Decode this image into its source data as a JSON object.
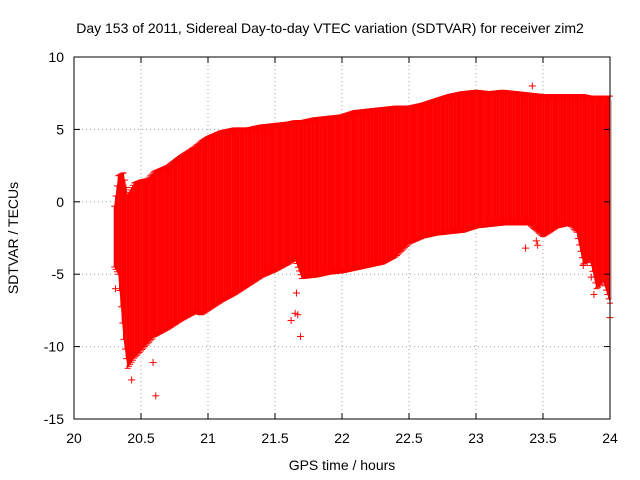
{
  "chart_data": {
    "type": "scatter",
    "title": "Day 153 of 2011, Sidereal Day-to-day VTEC variation (SDTVAR) for receiver zim2",
    "xlabel": "GPS time / hours",
    "ylabel": "SDTVAR / TECUs",
    "xlim": [
      20,
      24
    ],
    "ylim": [
      -15,
      10
    ],
    "x_ticks": [
      20,
      20.5,
      21,
      21.5,
      22,
      22.5,
      23,
      23.5,
      24
    ],
    "x_tick_labels": [
      "20",
      "20.5",
      "21",
      "21.5",
      "22",
      "22.5",
      "23",
      "23.5",
      "24"
    ],
    "y_ticks": [
      -15,
      -10,
      -5,
      0,
      5,
      10
    ],
    "y_tick_labels": [
      "-15",
      "-10",
      "-5",
      "0",
      "5",
      "10"
    ],
    "grid": true,
    "series": [
      {
        "name": "SDTVAR envelope",
        "color": "#ff0000",
        "marker": "+",
        "x": [
          20.3,
          20.33,
          20.37,
          20.4,
          20.45,
          20.5,
          20.55,
          20.6,
          20.7,
          20.8,
          20.9,
          20.95,
          21.0,
          21.1,
          21.2,
          21.3,
          21.4,
          21.5,
          21.6,
          21.65,
          21.7,
          21.8,
          21.9,
          22.0,
          22.1,
          22.2,
          22.3,
          22.4,
          22.5,
          22.6,
          22.7,
          22.8,
          22.9,
          23.0,
          23.1,
          23.2,
          23.3,
          23.4,
          23.5,
          23.6,
          23.7,
          23.75,
          23.8,
          23.85,
          23.9,
          23.95,
          24.0
        ],
        "upper": [
          -0.3,
          1.8,
          2.0,
          0.5,
          1.3,
          1.5,
          1.6,
          2.1,
          2.5,
          3.2,
          3.8,
          4.2,
          4.5,
          4.9,
          5.1,
          5.1,
          5.3,
          5.4,
          5.5,
          5.6,
          5.6,
          5.8,
          5.9,
          6.0,
          6.3,
          6.4,
          6.5,
          6.6,
          6.6,
          6.8,
          7.1,
          7.4,
          7.6,
          7.7,
          7.6,
          7.7,
          7.6,
          7.5,
          7.4,
          7.4,
          7.4,
          7.4,
          7.4,
          7.3,
          7.3,
          7.3,
          7.3
        ],
        "lower": [
          -4.5,
          -5.0,
          -9.5,
          -11.5,
          -10.8,
          -10.3,
          -9.8,
          -9.3,
          -8.8,
          -8.2,
          -7.7,
          -7.8,
          -7.5,
          -6.9,
          -6.4,
          -5.8,
          -5.2,
          -4.8,
          -4.3,
          -4.0,
          -5.3,
          -5.2,
          -5.0,
          -4.9,
          -4.7,
          -4.5,
          -4.3,
          -3.8,
          -2.9,
          -2.5,
          -2.3,
          -2.2,
          -2.1,
          -1.8,
          -1.7,
          -1.6,
          -1.6,
          -1.6,
          -2.4,
          -1.8,
          -1.6,
          -2.1,
          -4.3,
          -4.0,
          -6.0,
          -5.5,
          -7.0
        ]
      },
      {
        "name": "outliers",
        "color": "#ff0000",
        "marker": "+",
        "points": [
          [
            20.31,
            -6.0
          ],
          [
            20.43,
            -12.3
          ],
          [
            20.59,
            -11.1
          ],
          [
            20.61,
            -13.4
          ],
          [
            20.42,
            -10.5
          ],
          [
            21.62,
            -8.2
          ],
          [
            21.65,
            -7.7
          ],
          [
            21.67,
            -7.8
          ],
          [
            21.66,
            -6.3
          ],
          [
            21.69,
            -9.3
          ],
          [
            21.67,
            -4.0
          ],
          [
            21.7,
            -3.8
          ],
          [
            23.37,
            -3.2
          ],
          [
            23.42,
            8.0
          ],
          [
            23.45,
            -2.7
          ],
          [
            23.46,
            -3.0
          ],
          [
            23.8,
            -4.4
          ],
          [
            23.83,
            -4.2
          ],
          [
            23.86,
            -5.2
          ],
          [
            23.88,
            -6.4
          ],
          [
            23.9,
            -4.7
          ],
          [
            23.92,
            -5.7
          ],
          [
            24.0,
            -8.0
          ]
        ]
      }
    ]
  }
}
